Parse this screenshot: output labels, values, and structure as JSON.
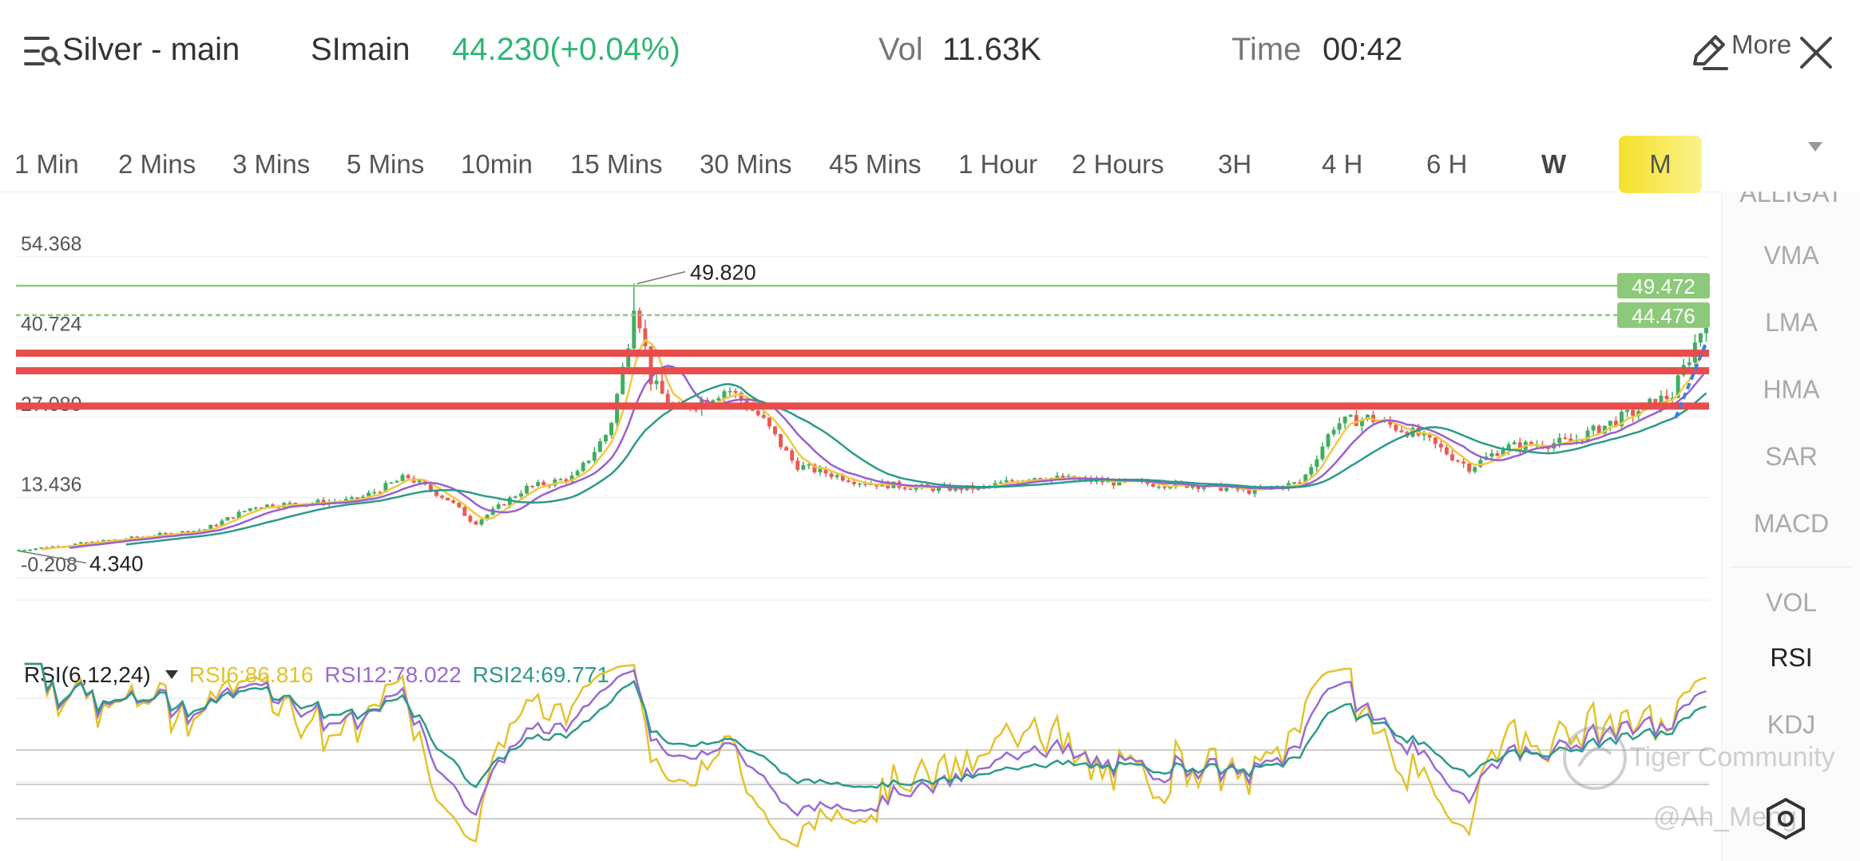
{
  "header": {
    "title": "Silver - main",
    "symbol": "SImain",
    "price": "44.230(+0.04%)",
    "vol_label": "Vol",
    "vol_value": "11.63K",
    "time_label": "Time",
    "time_value": "00:42",
    "price_color": "#2fb574"
  },
  "tabs": [
    {
      "label": "1 Min"
    },
    {
      "label": "2 Mins"
    },
    {
      "label": "3 Mins"
    },
    {
      "label": "5 Mins"
    },
    {
      "label": "10min"
    },
    {
      "label": "15 Mins"
    },
    {
      "label": "30 Mins"
    },
    {
      "label": "45 Mins"
    },
    {
      "label": "1 Hour"
    },
    {
      "label": "2 Hours"
    },
    {
      "label": "3H"
    },
    {
      "label": "4 H"
    },
    {
      "label": "6 H"
    },
    {
      "label": "W"
    },
    {
      "label": "M",
      "active": true
    }
  ],
  "more_label": "More",
  "indicators": {
    "overlay": [
      "ALLIGAT",
      "VMA",
      "LMA",
      "HMA",
      "SAR",
      "MACD"
    ],
    "sub": [
      "VOL",
      "RSI",
      "KDJ"
    ],
    "active": "RSI"
  },
  "chart_data": {
    "type": "candlestick",
    "y_ticks": [
      "54.368",
      "40.724",
      "27.080",
      "13.436",
      "-0.208"
    ],
    "ylim": [
      -0.208,
      54.368
    ],
    "high_label": "49.820",
    "low_label": "4.340",
    "price_lines": [
      {
        "value": "49.472",
        "style": "solid",
        "color": "#8cc97a"
      },
      {
        "value": "44.476",
        "style": "dashed",
        "color": "#8cc97a"
      }
    ],
    "drawn_lines": [
      38.0,
      35.0,
      29.0
    ],
    "drawn_line_color": "#e84c4c",
    "ma_colors": [
      "#f2c744",
      "#9a5fd0",
      "#2c9a8a"
    ],
    "up_color": "#3fae5f",
    "down_color": "#e85b54"
  },
  "rsi": {
    "name": "RSI(6,12,24)",
    "rsi6": "RSI6:86.816",
    "rsi12": "RSI12:78.022",
    "rsi24": "RSI24:69.771",
    "colors": {
      "rsi6": "#e2c32c",
      "rsi12": "#9a6ad6",
      "rsi24": "#2c9a8a"
    }
  },
  "watermarks": {
    "community": "Tiger Community",
    "user": "@Ah_Meng"
  }
}
